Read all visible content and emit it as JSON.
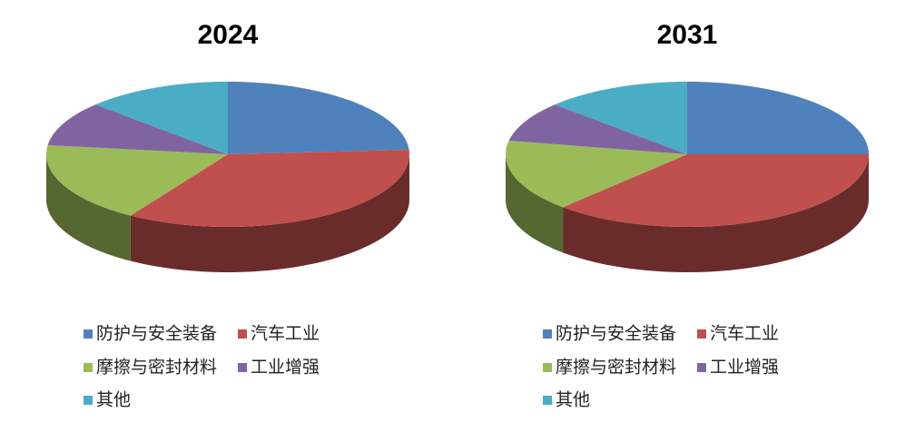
{
  "chart_data": [
    {
      "type": "pie",
      "title": "2024",
      "categories": [
        "防护与安全装备",
        "汽车工业",
        "摩擦与密封材料",
        "工业增强",
        "其他"
      ],
      "values": [
        24,
        35,
        18,
        10,
        13
      ],
      "colors": [
        "#4f81bd",
        "#c0504d",
        "#9bbb59",
        "#8064a2",
        "#4bacc6"
      ]
    },
    {
      "type": "pie",
      "title": "2031",
      "categories": [
        "防护与安全装备",
        "汽车工业",
        "摩擦与密封材料",
        "工业增强",
        "其他"
      ],
      "values": [
        25,
        37,
        16,
        9,
        13
      ],
      "colors": [
        "#4f81bd",
        "#c0504d",
        "#9bbb59",
        "#8064a2",
        "#4bacc6"
      ]
    }
  ]
}
